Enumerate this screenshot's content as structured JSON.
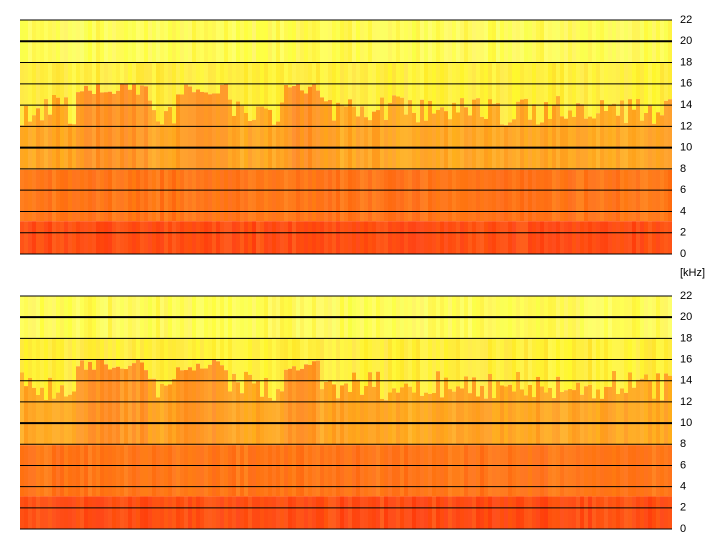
{
  "chart_data": [
    {
      "type": "spectrogram",
      "ylim": [
        0,
        22
      ],
      "yticks": [
        0,
        2,
        4,
        6,
        8,
        10,
        12,
        14,
        16,
        18,
        20,
        22
      ],
      "major_grid": [
        10,
        20
      ],
      "y_label": "[kHz]"
    },
    {
      "type": "spectrogram",
      "ylim": [
        0,
        22
      ],
      "yticks": [
        0,
        2,
        4,
        6,
        8,
        10,
        12,
        14,
        16,
        18,
        20,
        22
      ],
      "major_grid": [
        10,
        20
      ]
    }
  ]
}
